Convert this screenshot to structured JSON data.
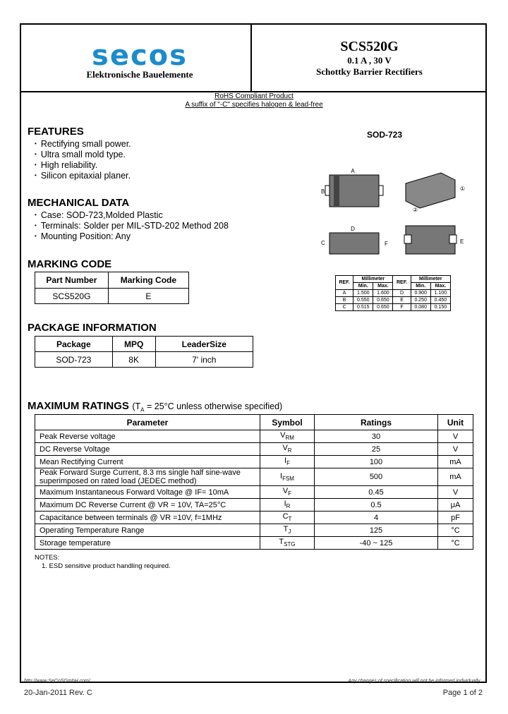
{
  "logo": {
    "brand": "secos",
    "tagline": "Elektronische Bauelemente"
  },
  "header": {
    "part": "SCS520G",
    "rating": "0.1 A , 30 V",
    "type": "Schottky Barrier Rectifiers"
  },
  "rohs": {
    "line1": "RoHS Compliant Product",
    "line2": "A suffix of \"-C\" specifies halogen & lead-free"
  },
  "features": {
    "title": "FEATURES",
    "items": [
      "Rectifying small power.",
      "Ultra small mold type.",
      "High reliability.",
      "Silicon epitaxial planer."
    ]
  },
  "mechanical": {
    "title": "MECHANICAL DATA",
    "items": [
      "Case: SOD-723,Molded Plastic",
      "Terminals: Solder per MIL-STD-202 Method 208",
      "Mounting Position: Any"
    ]
  },
  "marking": {
    "title": "MARKING CODE",
    "headers": [
      "Part Number",
      "Marking Code"
    ],
    "row": [
      "SCS520G",
      "E"
    ]
  },
  "package_info": {
    "title": "PACKAGE INFORMATION",
    "headers": [
      "Package",
      "MPQ",
      "LeaderSize"
    ],
    "row": [
      "SOD-723",
      "8K",
      "7' inch"
    ]
  },
  "package_drawing": {
    "label": "SOD-723",
    "dims": [
      "A",
      "B",
      "C",
      "D",
      "E",
      "F"
    ],
    "pins": [
      "1",
      "2"
    ]
  },
  "dim_table": {
    "ref": "REF.",
    "mm": "Millimeter",
    "min": "Min.",
    "max": "Max.",
    "rows": [
      [
        "A",
        "1.500",
        "1.600",
        "D",
        "0.900",
        "1.100"
      ],
      [
        "B",
        "0.550",
        "0.650",
        "E",
        "0.250",
        "0.450"
      ],
      [
        "C",
        "0.515",
        "0.650",
        "F",
        "0.080",
        "0.150"
      ]
    ]
  },
  "max_ratings": {
    "title": "MAXIMUM RATINGS",
    "cond_pre": "(T",
    "cond_sub": "A",
    "cond_post": " = 25°C unless otherwise specified)",
    "headers": [
      "Parameter",
      "Symbol",
      "Ratings",
      "Unit"
    ],
    "rows": [
      {
        "p": "Peak Reverse voltage",
        "s": "V",
        "ss": "RM",
        "r": "30",
        "u": "V"
      },
      {
        "p": "DC Reverse Voltage",
        "s": "V",
        "ss": "R",
        "r": "25",
        "u": "V"
      },
      {
        "p": "Mean Rectifying Current",
        "s": "I",
        "ss": "F",
        "r": "100",
        "u": "mA"
      },
      {
        "p": "Peak Forward Surge Current, 8.3 ms single half sine-wave superimposed on rated load (JEDEC method)",
        "s": "I",
        "ss": "FSM",
        "r": "500",
        "u": "mA"
      },
      {
        "p": "Maximum Instantaneous Forward Voltage @ IF= 10mA",
        "s": "V",
        "ss": "F",
        "r": "0.45",
        "u": "V"
      },
      {
        "p": "Maximum DC Reverse Current @ VR = 10V, TA=25°C",
        "s": "I",
        "ss": "R",
        "r": "0.5",
        "u": "μA"
      },
      {
        "p": "Capacitance between terminals @ VR =10V, f=1MHz",
        "s": "C",
        "ss": "T",
        "r": "4",
        "u": "pF"
      },
      {
        "p": "Operating Temperature Range",
        "s": "T",
        "ss": "J",
        "r": "125",
        "u": "°C"
      },
      {
        "p": "Storage temperature",
        "s": "T",
        "ss": "STG",
        "r": "-40 ~ 125",
        "u": "°C"
      }
    ]
  },
  "notes": {
    "title": "NOTES:",
    "items": [
      "1.      ESD sensitive product handling required."
    ]
  },
  "footer": {
    "url": "http://www.SeCoSGmbH.com/",
    "disclaimer": "Any changes of specification will not be informed individually.",
    "date": "20-Jan-2011 Rev. C",
    "page": "Page 1 of 2"
  }
}
